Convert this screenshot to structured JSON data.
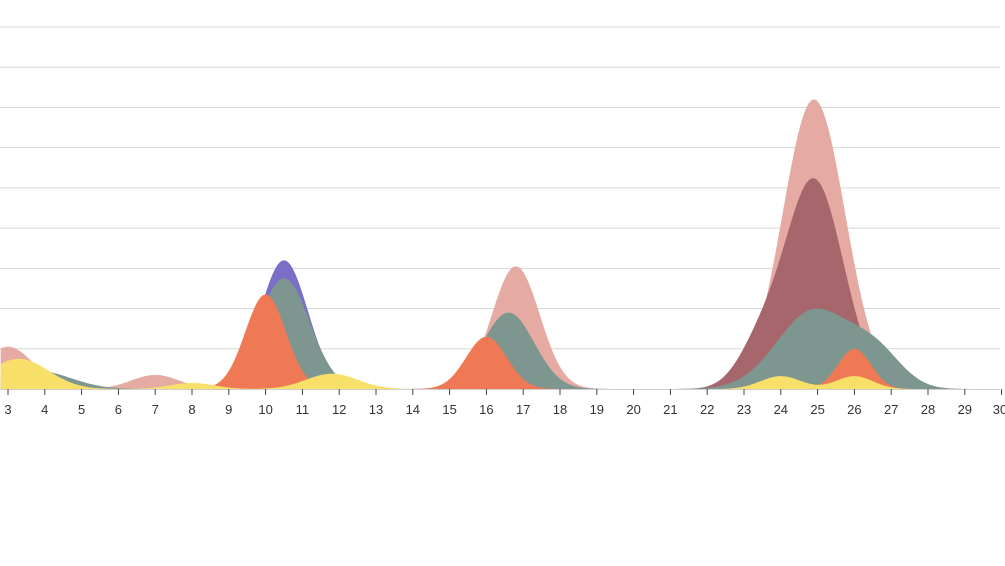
{
  "chart_data": {
    "type": "area",
    "title": "",
    "xlabel": "",
    "ylabel": "",
    "x_ticks": [
      3,
      4,
      5,
      6,
      7,
      8,
      9,
      10,
      11,
      12,
      13,
      14,
      15,
      16,
      17,
      18,
      19,
      20,
      21,
      22,
      23,
      24,
      25,
      26,
      27,
      28,
      29,
      30
    ],
    "xlim": [
      2.8,
      30
    ],
    "ylim": [
      0,
      9
    ],
    "grid": true,
    "grid_lines": 9,
    "legend": "none",
    "series": [
      {
        "color": "#e5aba3",
        "peaks": [
          [
            3,
            1.05,
            0.7
          ],
          [
            7,
            0.35,
            0.65
          ],
          [
            10.5,
            3.1,
            0.65
          ],
          [
            16.8,
            3.05,
            0.65
          ],
          [
            24.9,
            7.2,
            0.85
          ]
        ]
      },
      {
        "color": "#7a6fc6",
        "peaks": [
          [
            10.5,
            3.2,
            0.65
          ]
        ]
      },
      {
        "color": "#a7666b",
        "peaks": [
          [
            24.9,
            5.2,
            0.8
          ],
          [
            23.4,
            0.9,
            0.6
          ]
        ]
      },
      {
        "color": "#7e9690",
        "peaks": [
          [
            3.8,
            0.45,
            0.9
          ],
          [
            10.5,
            2.75,
            0.7
          ],
          [
            16.6,
            1.9,
            0.7
          ],
          [
            24.9,
            1.95,
            1.0
          ],
          [
            26.6,
            0.8,
            0.7
          ]
        ]
      },
      {
        "color": "#ef7955",
        "peaks": [
          [
            10.0,
            2.35,
            0.55
          ],
          [
            16.0,
            1.3,
            0.55
          ],
          [
            26.0,
            1.0,
            0.45
          ]
        ]
      },
      {
        "color": "#f7df6a",
        "peaks": [
          [
            3.3,
            0.75,
            0.8
          ],
          [
            8.0,
            0.15,
            0.6
          ],
          [
            11.8,
            0.38,
            0.7
          ],
          [
            24.0,
            0.32,
            0.55
          ],
          [
            26.0,
            0.32,
            0.5
          ]
        ]
      }
    ]
  }
}
